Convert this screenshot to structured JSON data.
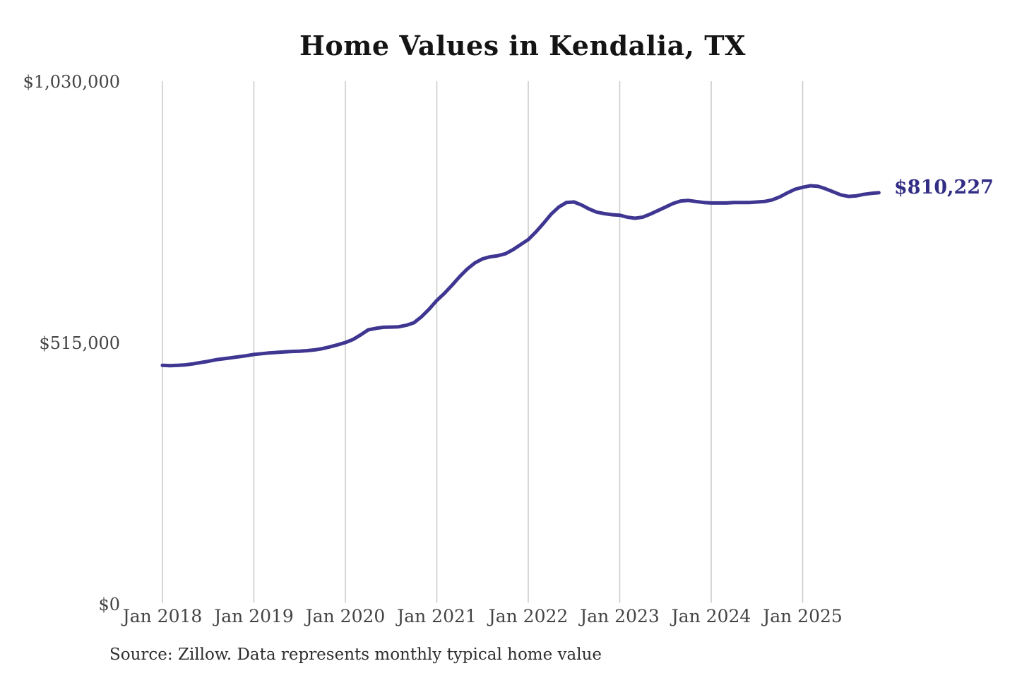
{
  "title": "Home Values in Kendalia, TX",
  "source": "Source: Zillow. Data represents monthly typical home value",
  "colors": {
    "line": "#3e3691",
    "annotation": "#332e85",
    "grid": "#c9c9c9",
    "title": "#141414",
    "axis_label": "#434343"
  },
  "chart_data": {
    "type": "line",
    "title": "Home Values in Kendalia, TX",
    "xlabel": "",
    "ylabel": "",
    "grid": "vertical-only",
    "legend_position": "none",
    "ylim": [
      0,
      1030000
    ],
    "y_ticks": [
      {
        "label": "$1,030,000",
        "value": 1030000
      },
      {
        "label": "$515,000",
        "value": 515000
      },
      {
        "label": "$0",
        "value": 0
      }
    ],
    "x_ticks": [
      "Jan 2018",
      "Jan 2019",
      "Jan 2020",
      "Jan 2021",
      "Jan 2022",
      "Jan 2023",
      "Jan 2024",
      "Jan 2025"
    ],
    "x_start": "Jan 2018",
    "x_end": "Nov 2025",
    "frequency": "monthly",
    "last_value_label": "$810,227",
    "last_value": 810227,
    "series": [
      {
        "name": "Typical home value",
        "values": [
          470000,
          469500,
          470000,
          471000,
          473000,
          475500,
          478000,
          481000,
          483000,
          485000,
          487000,
          489000,
          491500,
          493000,
          494500,
          495500,
          496500,
          497500,
          498000,
          499000,
          500500,
          503000,
          506500,
          510500,
          515000,
          521000,
          530000,
          540000,
          543000,
          545000,
          545500,
          546000,
          549000,
          554000,
          566000,
          581000,
          598000,
          612000,
          628000,
          645000,
          660000,
          672000,
          680000,
          684000,
          686000,
          690000,
          698000,
          708000,
          718000,
          733000,
          750000,
          768000,
          782000,
          791000,
          792000,
          786000,
          778000,
          772000,
          769000,
          767000,
          766000,
          762000,
          760000,
          762000,
          768000,
          775000,
          782000,
          789000,
          794000,
          795000,
          793000,
          791000,
          790000,
          790000,
          790000,
          791000,
          791000,
          791000,
          792000,
          793000,
          796000,
          802000,
          810000,
          817000,
          821000,
          824000,
          823000,
          818000,
          812000,
          806000,
          803000,
          804000,
          807000,
          809000,
          810227
        ]
      }
    ]
  }
}
